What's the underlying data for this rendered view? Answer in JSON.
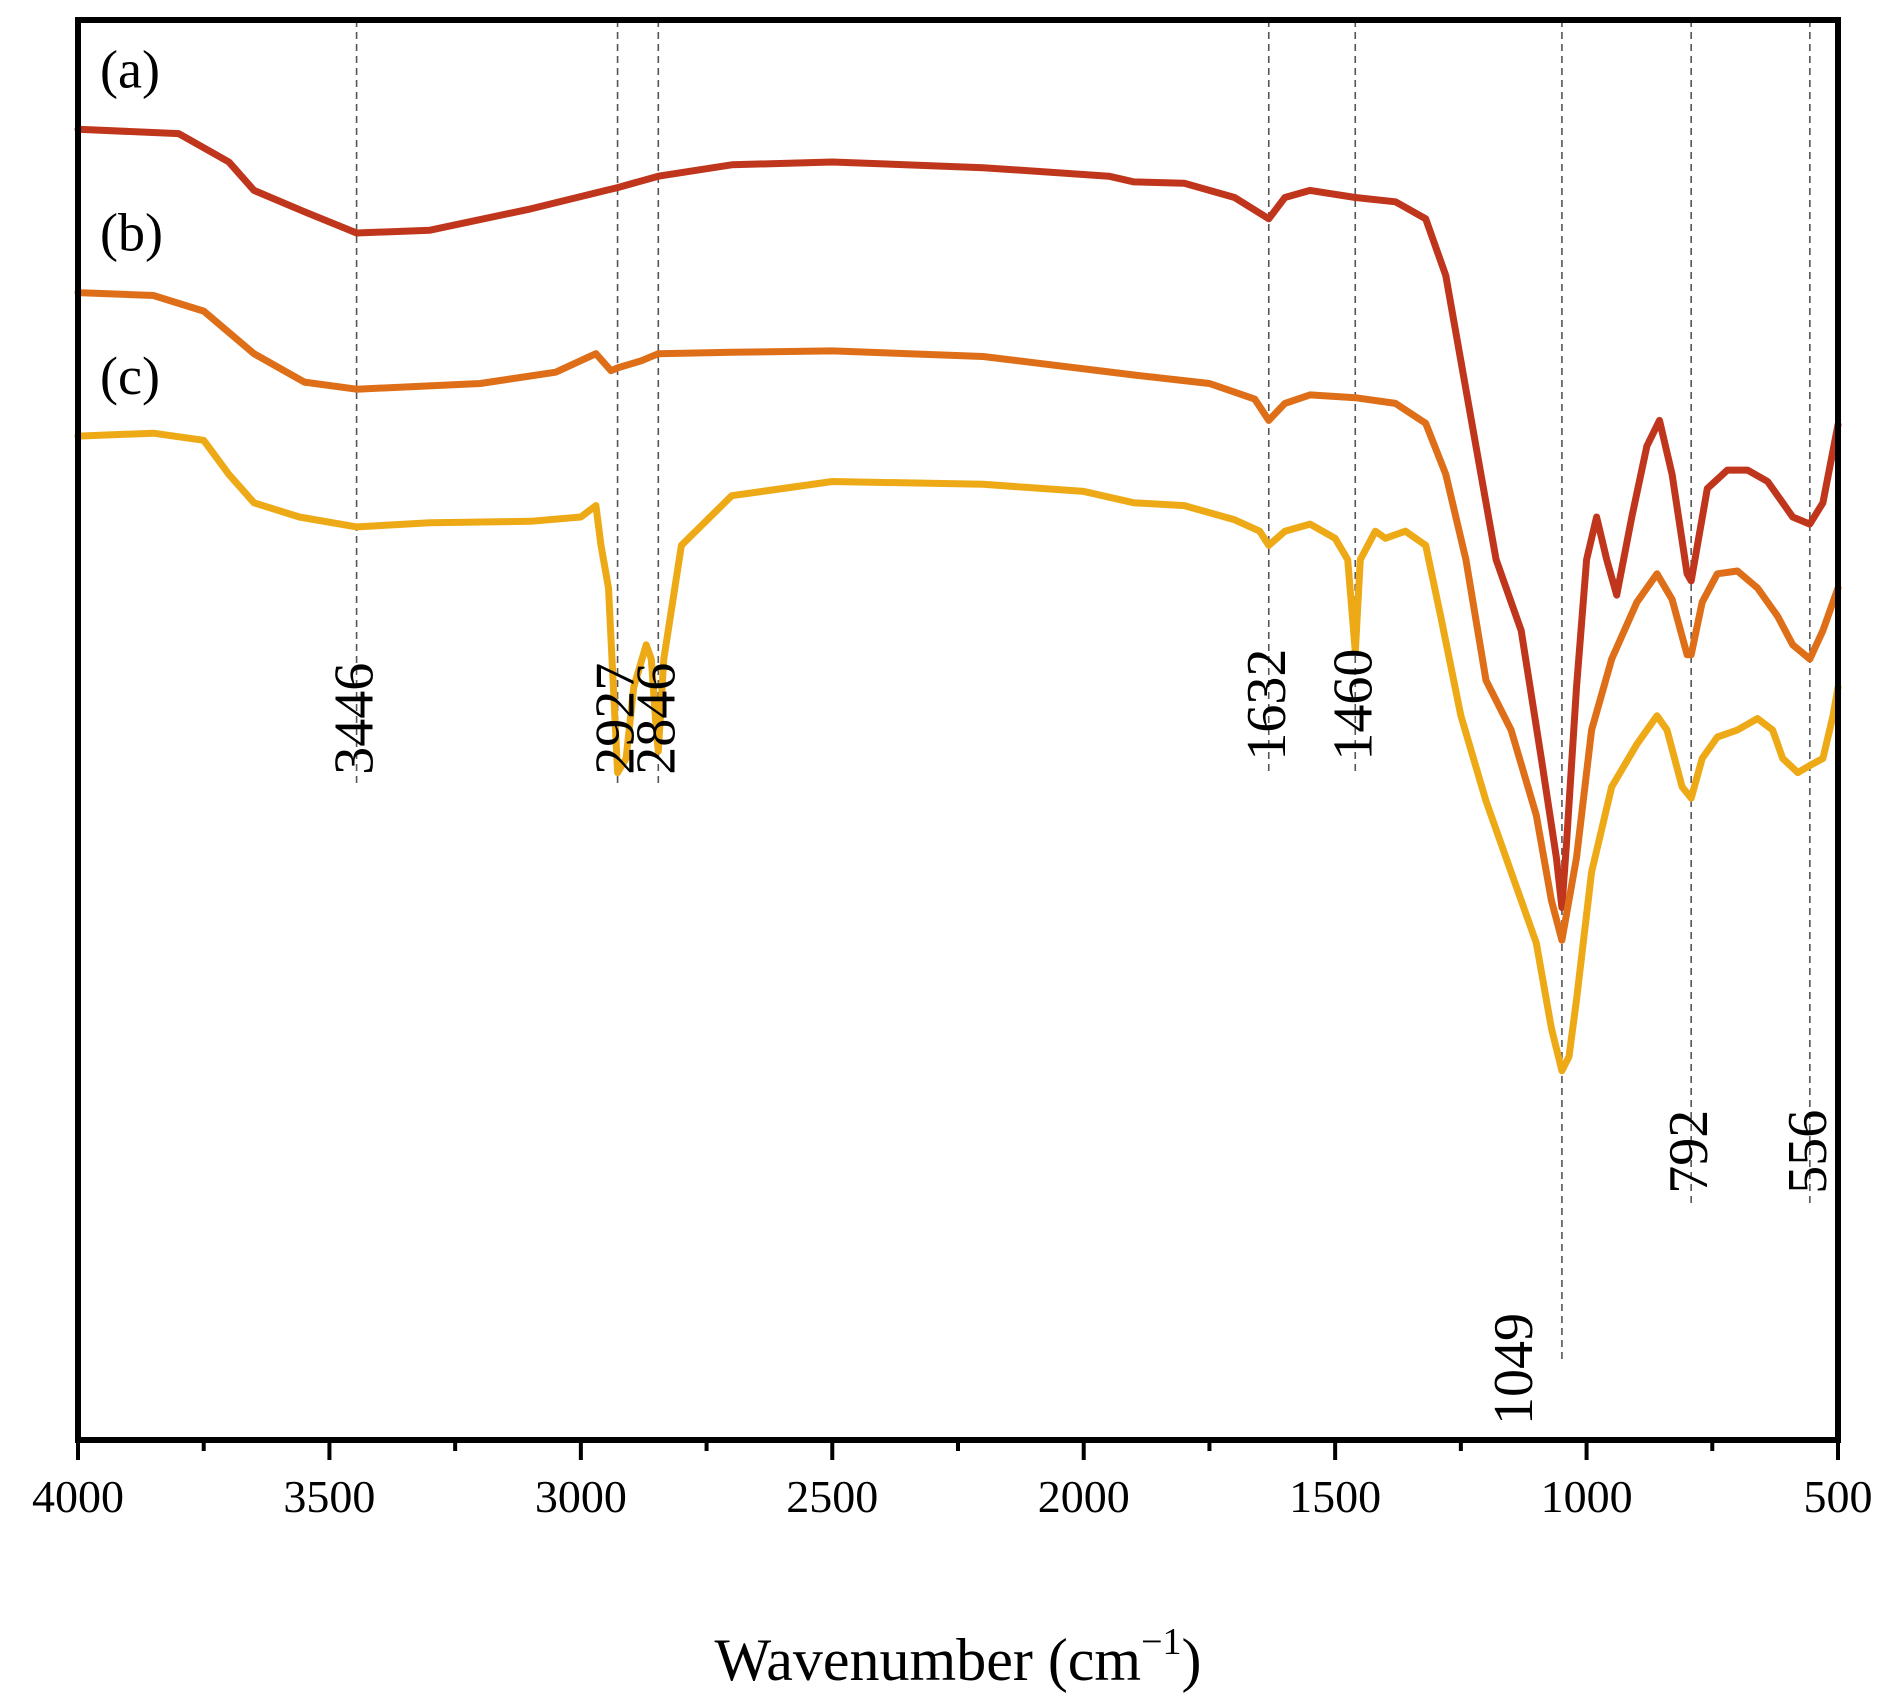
{
  "chart_data": {
    "type": "line",
    "title": "",
    "xlabel": "Wavenumber (cm",
    "xlabel_sup": "−1",
    "xlabel_close": ")",
    "ylabel": "",
    "xlim": [
      4000,
      500
    ],
    "xticks": [
      4000,
      3500,
      3000,
      2500,
      2000,
      1500,
      1000,
      500
    ],
    "xtick_labels": [
      "4000",
      "3500",
      "3000",
      "2500",
      "2000",
      "1500",
      "1000",
      "500"
    ],
    "minor_xticks": [
      3750,
      3250,
      2750,
      2250,
      1750,
      1250,
      750
    ],
    "grid": false,
    "legend": "none",
    "y_units": "transmittance (a.u., offset)",
    "ylim": [
      0,
      100
    ],
    "series": [
      {
        "name": "(a)",
        "color": "#c0361c",
        "points": [
          [
            4000,
            92.3
          ],
          [
            3800,
            92
          ],
          [
            3700,
            90
          ],
          [
            3650,
            88
          ],
          [
            3550,
            86.5
          ],
          [
            3446,
            85
          ],
          [
            3300,
            85.2
          ],
          [
            3100,
            86.7
          ],
          [
            2950,
            88
          ],
          [
            2927,
            88.2
          ],
          [
            2846,
            89
          ],
          [
            2700,
            89.8
          ],
          [
            2500,
            90
          ],
          [
            2200,
            89.6
          ],
          [
            1950,
            89
          ],
          [
            1900,
            88.6
          ],
          [
            1800,
            88.5
          ],
          [
            1700,
            87.5
          ],
          [
            1632,
            86
          ],
          [
            1600,
            87.5
          ],
          [
            1550,
            88
          ],
          [
            1460,
            87.5
          ],
          [
            1380,
            87.2
          ],
          [
            1320,
            86
          ],
          [
            1280,
            82
          ],
          [
            1230,
            72
          ],
          [
            1180,
            62
          ],
          [
            1130,
            57
          ],
          [
            1090,
            48
          ],
          [
            1060,
            41
          ],
          [
            1049,
            37.5
          ],
          [
            1040,
            42
          ],
          [
            1020,
            53
          ],
          [
            1000,
            62
          ],
          [
            980,
            65
          ],
          [
            960,
            62
          ],
          [
            940,
            59.5
          ],
          [
            910,
            65
          ],
          [
            880,
            70
          ],
          [
            855,
            71.8
          ],
          [
            830,
            68
          ],
          [
            800,
            61
          ],
          [
            792,
            60.5
          ],
          [
            760,
            67
          ],
          [
            720,
            68.3
          ],
          [
            680,
            68.3
          ],
          [
            640,
            67.5
          ],
          [
            610,
            66
          ],
          [
            590,
            65
          ],
          [
            556,
            64.5
          ],
          [
            530,
            66
          ],
          [
            500,
            71.5
          ]
        ]
      },
      {
        "name": "(b)",
        "color": "#de6f18",
        "points": [
          [
            4000,
            80.8
          ],
          [
            3850,
            80.6
          ],
          [
            3750,
            79.5
          ],
          [
            3650,
            76.5
          ],
          [
            3550,
            74.5
          ],
          [
            3446,
            74
          ],
          [
            3200,
            74.4
          ],
          [
            3050,
            75.2
          ],
          [
            2970,
            76.5
          ],
          [
            2940,
            75.3
          ],
          [
            2927,
            75.5
          ],
          [
            2880,
            76
          ],
          [
            2846,
            76.5
          ],
          [
            2700,
            76.6
          ],
          [
            2500,
            76.7
          ],
          [
            2200,
            76.3
          ],
          [
            1900,
            75
          ],
          [
            1750,
            74.4
          ],
          [
            1660,
            73.3
          ],
          [
            1632,
            71.8
          ],
          [
            1600,
            73
          ],
          [
            1550,
            73.6
          ],
          [
            1460,
            73.4
          ],
          [
            1380,
            73
          ],
          [
            1320,
            71.6
          ],
          [
            1280,
            68
          ],
          [
            1240,
            62
          ],
          [
            1200,
            53.5
          ],
          [
            1150,
            50
          ],
          [
            1100,
            44
          ],
          [
            1070,
            38
          ],
          [
            1049,
            35.2
          ],
          [
            1020,
            41
          ],
          [
            990,
            50
          ],
          [
            950,
            55
          ],
          [
            900,
            59
          ],
          [
            860,
            61
          ],
          [
            830,
            59.2
          ],
          [
            800,
            55.3
          ],
          [
            792,
            55.3
          ],
          [
            770,
            59
          ],
          [
            740,
            61
          ],
          [
            700,
            61.2
          ],
          [
            660,
            60
          ],
          [
            620,
            58
          ],
          [
            590,
            56
          ],
          [
            556,
            55
          ],
          [
            530,
            57
          ],
          [
            500,
            60
          ]
        ]
      },
      {
        "name": "(c)",
        "color": "#edaa16",
        "points": [
          [
            4000,
            70.7
          ],
          [
            3850,
            70.9
          ],
          [
            3750,
            70.4
          ],
          [
            3700,
            68
          ],
          [
            3650,
            66
          ],
          [
            3560,
            65
          ],
          [
            3446,
            64.3
          ],
          [
            3300,
            64.6
          ],
          [
            3100,
            64.7
          ],
          [
            3000,
            65
          ],
          [
            2970,
            65.8
          ],
          [
            2960,
            63
          ],
          [
            2945,
            60
          ],
          [
            2927,
            47
          ],
          [
            2910,
            48
          ],
          [
            2895,
            53
          ],
          [
            2870,
            56
          ],
          [
            2860,
            55
          ],
          [
            2850,
            50
          ],
          [
            2846,
            48.5
          ],
          [
            2835,
            55
          ],
          [
            2800,
            63
          ],
          [
            2700,
            66.5
          ],
          [
            2500,
            67.5
          ],
          [
            2200,
            67.3
          ],
          [
            2000,
            66.8
          ],
          [
            1900,
            66
          ],
          [
            1800,
            65.8
          ],
          [
            1700,
            64.8
          ],
          [
            1650,
            64
          ],
          [
            1632,
            63
          ],
          [
            1600,
            64
          ],
          [
            1550,
            64.5
          ],
          [
            1500,
            63.5
          ],
          [
            1475,
            62
          ],
          [
            1460,
            55.5
          ],
          [
            1450,
            62
          ],
          [
            1420,
            64
          ],
          [
            1400,
            63.5
          ],
          [
            1360,
            64
          ],
          [
            1320,
            63
          ],
          [
            1290,
            58
          ],
          [
            1250,
            51
          ],
          [
            1200,
            45
          ],
          [
            1150,
            40
          ],
          [
            1100,
            35
          ],
          [
            1070,
            29
          ],
          [
            1049,
            26
          ],
          [
            1035,
            27
          ],
          [
            1020,
            31
          ],
          [
            990,
            40
          ],
          [
            950,
            46
          ],
          [
            900,
            49
          ],
          [
            860,
            51
          ],
          [
            840,
            50
          ],
          [
            810,
            46
          ],
          [
            792,
            45.2
          ],
          [
            770,
            48
          ],
          [
            740,
            49.5
          ],
          [
            700,
            50
          ],
          [
            660,
            50.8
          ],
          [
            630,
            50
          ],
          [
            610,
            48
          ],
          [
            580,
            47
          ],
          [
            556,
            47.5
          ],
          [
            530,
            48
          ],
          [
            510,
            51
          ],
          [
            500,
            53
          ]
        ]
      }
    ],
    "series_labels": [
      "(a)",
      "(b)",
      "(c)"
    ],
    "annotations": [
      {
        "value": 3446,
        "label": "3446",
        "line_bottom": 46
      },
      {
        "value": 2927,
        "label": "2927",
        "line_bottom": 46
      },
      {
        "value": 2846,
        "label": "2846",
        "line_bottom": 46
      },
      {
        "value": 1632,
        "label": "1632",
        "line_bottom": 47
      },
      {
        "value": 1460,
        "label": "1460",
        "line_bottom": 47
      },
      {
        "value": 1049,
        "label": "1049",
        "line_bottom": 5.5
      },
      {
        "value": 792,
        "label": "792",
        "line_bottom": 16.5
      },
      {
        "value": 556,
        "label": "556",
        "line_bottom": 16.5
      }
    ]
  }
}
